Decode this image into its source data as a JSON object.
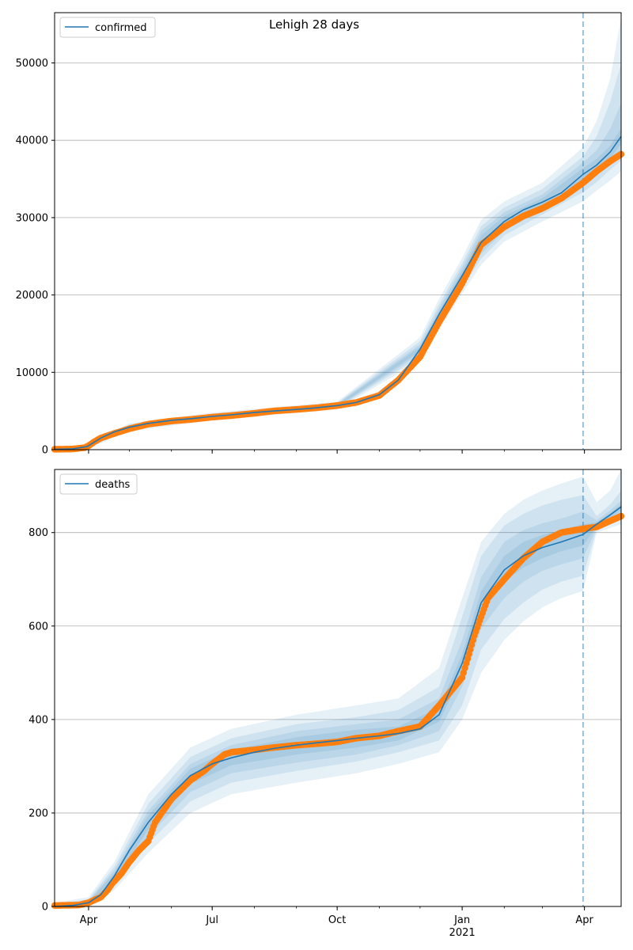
{
  "figure_title": "Lehigh 28 days",
  "colors": {
    "model": "#1f77b4",
    "observed": "#ff7f0e",
    "band": "#1f77b4",
    "grid": "#b0b0b0",
    "vline": "#1f77b4"
  },
  "x_ticks": [
    {
      "date": "2020-04-01",
      "label": "Apr"
    },
    {
      "date": "2020-07-01",
      "label": "Jul"
    },
    {
      "date": "2020-10-01",
      "label": "Oct"
    },
    {
      "date": "2021-01-01",
      "label": "Jan",
      "sublabel": "2021"
    },
    {
      "date": "2021-04-01",
      "label": "Apr"
    }
  ],
  "chart_data": [
    {
      "type": "line",
      "legend": "confirmed",
      "legend_position": "upper-left",
      "grid": "horizontal",
      "x_range": [
        "2020-03-07",
        "2021-04-28"
      ],
      "ylim": [
        0,
        56500
      ],
      "y_ticks": [
        0,
        10000,
        20000,
        30000,
        40000,
        50000
      ],
      "forecast_start": "2021-03-31",
      "model": {
        "x": [
          "2020-03-07",
          "2020-03-20",
          "2020-03-31",
          "2020-04-10",
          "2020-04-20",
          "2020-05-01",
          "2020-05-15",
          "2020-06-01",
          "2020-06-15",
          "2020-07-01",
          "2020-07-15",
          "2020-08-01",
          "2020-08-15",
          "2020-09-01",
          "2020-09-15",
          "2020-10-01",
          "2020-10-15",
          "2020-11-01",
          "2020-11-15",
          "2020-12-01",
          "2020-12-15",
          "2021-01-01",
          "2021-01-15",
          "2021-02-01",
          "2021-02-15",
          "2021-03-01",
          "2021-03-15",
          "2021-03-31",
          "2021-04-10",
          "2021-04-20",
          "2021-04-28"
        ],
        "y": [
          50,
          100,
          400,
          1500,
          2300,
          2900,
          3400,
          3800,
          4000,
          4300,
          4500,
          4800,
          5000,
          5200,
          5400,
          5700,
          6100,
          7100,
          9000,
          13000,
          17500,
          22500,
          26800,
          29500,
          31000,
          32000,
          33200,
          35600,
          36800,
          38500,
          40500
        ]
      },
      "bands": [
        {
          "x": [
            "2020-03-07",
            "2020-04-01",
            "2020-05-01",
            "2020-07-01",
            "2020-10-01",
            "2020-12-01",
            "2020-12-15",
            "2021-01-01",
            "2021-01-15",
            "2021-02-01",
            "2021-03-01",
            "2021-03-31",
            "2021-04-10",
            "2021-04-20",
            "2021-04-28"
          ],
          "lo": [
            0,
            200,
            2400,
            3800,
            5200,
            11500,
            15500,
            20200,
            23900,
            26900,
            29500,
            32100,
            33500,
            34800,
            36000
          ],
          "hi": [
            150,
            600,
            3400,
            4800,
            6200,
            14500,
            19500,
            24800,
            29700,
            32100,
            34500,
            39100,
            42500,
            48000,
            55800
          ]
        },
        {
          "x": [
            "2020-03-07",
            "2020-04-01",
            "2020-05-01",
            "2020-07-01",
            "2020-10-01",
            "2020-12-01",
            "2020-12-15",
            "2021-01-01",
            "2021-01-15",
            "2021-02-01",
            "2021-03-01",
            "2021-03-31",
            "2021-04-10",
            "2021-04-20",
            "2021-04-28"
          ],
          "lo": [
            20,
            270,
            2550,
            3950,
            5350,
            12000,
            16200,
            20900,
            24700,
            27700,
            30400,
            33300,
            34600,
            36200,
            37400
          ],
          "hi": [
            110,
            520,
            3250,
            4650,
            6050,
            14000,
            18800,
            24100,
            28900,
            31300,
            33700,
            37900,
            40500,
            45000,
            49900
          ]
        },
        {
          "x": [
            "2020-03-07",
            "2020-04-01",
            "2020-05-01",
            "2020-07-01",
            "2020-10-01",
            "2020-12-01",
            "2020-12-15",
            "2021-01-01",
            "2021-01-15",
            "2021-02-01",
            "2021-03-01",
            "2021-03-31",
            "2021-04-10",
            "2021-04-20",
            "2021-04-28"
          ],
          "lo": [
            30,
            320,
            2650,
            4050,
            5450,
            12400,
            16700,
            21400,
            25300,
            28300,
            31000,
            34100,
            35400,
            37000,
            38600
          ],
          "hi": [
            80,
            470,
            3150,
            4550,
            5950,
            13600,
            18300,
            23600,
            28300,
            30700,
            33000,
            37100,
            38700,
            41500,
            44800
          ]
        },
        {
          "x": [
            "2020-03-07",
            "2020-04-01",
            "2020-05-01",
            "2020-07-01",
            "2020-10-01",
            "2020-12-01",
            "2020-12-15",
            "2021-01-01",
            "2021-01-15",
            "2021-02-01",
            "2021-03-01",
            "2021-03-31",
            "2021-04-10",
            "2021-04-20",
            "2021-04-28"
          ],
          "lo": [
            40,
            360,
            2750,
            4150,
            5550,
            12700,
            17100,
            21900,
            25900,
            28800,
            31500,
            34800,
            36000,
            37700,
            39500
          ],
          "hi": [
            70,
            430,
            3050,
            4450,
            5850,
            13300,
            17900,
            23100,
            27700,
            30200,
            32500,
            36400,
            37600,
            39300,
            41600
          ]
        }
      ],
      "observed": {
        "x": [
          "2020-03-07",
          "2020-03-20",
          "2020-03-29",
          "2020-04-01",
          "2020-04-05",
          "2020-04-10",
          "2020-04-20",
          "2020-05-01",
          "2020-05-15",
          "2020-06-01",
          "2020-06-15",
          "2020-07-01",
          "2020-07-15",
          "2020-08-01",
          "2020-08-15",
          "2020-09-01",
          "2020-09-15",
          "2020-10-01",
          "2020-10-15",
          "2020-11-01",
          "2020-11-15",
          "2020-12-01",
          "2020-12-15",
          "2021-01-01",
          "2021-01-15",
          "2021-02-01",
          "2021-02-15",
          "2021-03-01",
          "2021-03-15",
          "2021-03-31",
          "2021-04-10",
          "2021-04-20",
          "2021-04-28"
        ],
        "y": [
          50,
          80,
          250,
          500,
          1000,
          1500,
          2100,
          2700,
          3300,
          3700,
          3900,
          4200,
          4400,
          4700,
          5000,
          5200,
          5400,
          5700,
          6100,
          7000,
          9000,
          12000,
          16500,
          21500,
          26500,
          28800,
          30200,
          31200,
          32500,
          34500,
          36000,
          37300,
          38200
        ]
      }
    },
    {
      "type": "line",
      "legend": "deaths",
      "legend_position": "upper-left",
      "grid": "horizontal",
      "x_range": [
        "2020-03-07",
        "2021-04-28"
      ],
      "ylim": [
        0,
        935
      ],
      "y_ticks": [
        0,
        200,
        400,
        600,
        800
      ],
      "forecast_start": "2021-03-31",
      "model": {
        "x": [
          "2020-03-07",
          "2020-03-20",
          "2020-04-01",
          "2020-04-10",
          "2020-04-20",
          "2020-05-01",
          "2020-05-15",
          "2020-06-01",
          "2020-06-15",
          "2020-07-01",
          "2020-07-15",
          "2020-08-01",
          "2020-08-15",
          "2020-09-01",
          "2020-09-15",
          "2020-10-01",
          "2020-10-15",
          "2020-11-01",
          "2020-11-15",
          "2020-12-01",
          "2020-12-15",
          "2021-01-01",
          "2021-01-15",
          "2021-02-01",
          "2021-02-15",
          "2021-03-01",
          "2021-03-15",
          "2021-03-31",
          "2021-04-10",
          "2021-04-20",
          "2021-04-28"
        ],
        "y": [
          0,
          2,
          8,
          25,
          65,
          120,
          180,
          240,
          280,
          305,
          318,
          330,
          338,
          345,
          350,
          355,
          360,
          365,
          370,
          380,
          410,
          520,
          650,
          720,
          750,
          768,
          780,
          796,
          818,
          838,
          855
        ]
      },
      "bands": [
        {
          "x": [
            "2020-03-07",
            "2020-04-01",
            "2020-04-20",
            "2020-05-15",
            "2020-06-15",
            "2020-07-15",
            "2020-09-01",
            "2020-10-15",
            "2020-11-15",
            "2020-12-15",
            "2021-01-01",
            "2021-01-15",
            "2021-02-01",
            "2021-02-15",
            "2021-03-01",
            "2021-03-15",
            "2021-03-31",
            "2021-04-10",
            "2021-04-20",
            "2021-04-28"
          ],
          "lo": [
            0,
            0,
            35,
            115,
            200,
            240,
            265,
            285,
            305,
            330,
            400,
            500,
            570,
            610,
            640,
            660,
            675,
            800,
            810,
            818
          ],
          "hi": [
            8,
            20,
            95,
            240,
            340,
            380,
            410,
            430,
            445,
            510,
            660,
            780,
            840,
            870,
            890,
            905,
            920,
            865,
            890,
            935
          ]
        },
        {
          "x": [
            "2020-03-07",
            "2020-04-01",
            "2020-04-20",
            "2020-05-15",
            "2020-06-15",
            "2020-07-15",
            "2020-09-01",
            "2020-10-15",
            "2020-11-15",
            "2020-12-15",
            "2021-01-01",
            "2021-01-15",
            "2021-02-01",
            "2021-02-15",
            "2021-03-01",
            "2021-03-15",
            "2021-03-31",
            "2021-04-10",
            "2021-04-20",
            "2021-04-28"
          ],
          "lo": [
            0,
            2,
            45,
            135,
            225,
            265,
            290,
            310,
            330,
            355,
            430,
            550,
            615,
            650,
            678,
            695,
            708,
            807,
            822,
            834
          ],
          "hi": [
            6,
            15,
            85,
            220,
            320,
            360,
            390,
            405,
            420,
            470,
            620,
            750,
            815,
            840,
            858,
            870,
            880,
            835,
            860,
            890
          ]
        },
        {
          "x": [
            "2020-03-07",
            "2020-04-01",
            "2020-04-20",
            "2020-05-15",
            "2020-06-15",
            "2020-07-15",
            "2020-09-01",
            "2020-10-15",
            "2020-11-15",
            "2020-12-15",
            "2021-01-01",
            "2021-01-15",
            "2021-02-01",
            "2021-02-15",
            "2021-03-01",
            "2021-03-15",
            "2021-03-31",
            "2021-04-10",
            "2021-04-20",
            "2021-04-28"
          ],
          "lo": [
            0,
            4,
            52,
            150,
            245,
            285,
            308,
            325,
            345,
            375,
            470,
            595,
            660,
            695,
            718,
            732,
            745,
            810,
            828,
            842
          ],
          "hi": [
            4,
            12,
            78,
            205,
            305,
            345,
            375,
            390,
            400,
            445,
            570,
            705,
            780,
            805,
            820,
            830,
            845,
            826,
            848,
            868
          ]
        },
        {
          "x": [
            "2020-03-07",
            "2020-04-01",
            "2020-04-20",
            "2020-05-15",
            "2020-06-15",
            "2020-07-15",
            "2020-09-01",
            "2020-10-15",
            "2020-11-15",
            "2020-12-15",
            "2021-01-01",
            "2021-01-15",
            "2021-02-01",
            "2021-02-15",
            "2021-03-01",
            "2021-03-15",
            "2021-03-31",
            "2021-04-10",
            "2021-04-20",
            "2021-04-28"
          ],
          "lo": [
            0,
            6,
            58,
            165,
            262,
            302,
            325,
            340,
            355,
            395,
            500,
            625,
            695,
            725,
            745,
            760,
            772,
            813,
            832,
            848
          ],
          "hi": [
            2,
            10,
            72,
            195,
            295,
            335,
            362,
            378,
            385,
            425,
            540,
            675,
            750,
            780,
            795,
            805,
            818,
            822,
            842,
            860
          ]
        }
      ],
      "observed": {
        "x": [
          "2020-03-07",
          "2020-03-25",
          "2020-04-01",
          "2020-04-10",
          "2020-04-15",
          "2020-04-18",
          "2020-04-25",
          "2020-05-01",
          "2020-05-08",
          "2020-05-15",
          "2020-05-20",
          "2020-06-01",
          "2020-06-15",
          "2020-06-25",
          "2020-07-01",
          "2020-07-10",
          "2020-07-15",
          "2020-08-01",
          "2020-08-15",
          "2020-09-01",
          "2020-09-15",
          "2020-10-01",
          "2020-10-15",
          "2020-11-01",
          "2020-11-15",
          "2020-12-01",
          "2020-12-15",
          "2021-01-01",
          "2021-01-10",
          "2021-01-20",
          "2021-02-01",
          "2021-02-15",
          "2021-03-01",
          "2021-03-15",
          "2021-03-31",
          "2021-04-10",
          "2021-04-20",
          "2021-04-28"
        ],
        "y": [
          2,
          3,
          8,
          20,
          35,
          48,
          70,
          95,
          120,
          140,
          180,
          230,
          270,
          290,
          305,
          325,
          330,
          335,
          340,
          345,
          348,
          352,
          360,
          365,
          375,
          385,
          430,
          490,
          580,
          660,
          700,
          745,
          780,
          800,
          808,
          812,
          825,
          835
        ]
      }
    }
  ]
}
